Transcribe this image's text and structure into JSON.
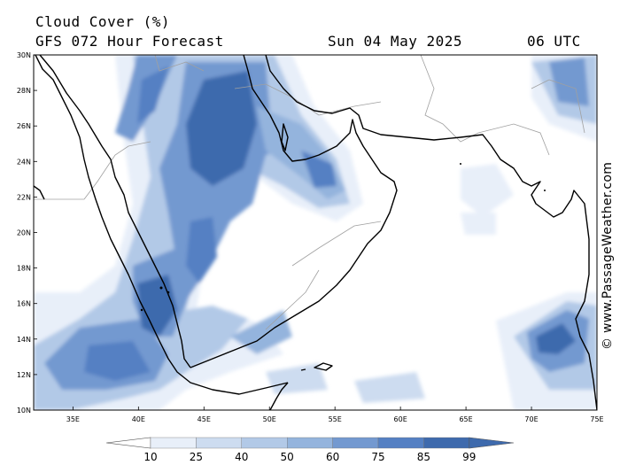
{
  "header": {
    "title": "Cloud Cover (%)",
    "model": "GFS 072 Hour Forecast",
    "date": "Sun 04 May 2025",
    "time": "06 UTC"
  },
  "credit": "© www.PassageWeather.com",
  "map": {
    "lat_range": [
      10,
      30
    ],
    "lon_range": [
      32,
      75
    ],
    "lat_labels": [
      "30N",
      "28N",
      "26N",
      "24N",
      "22N",
      "20N",
      "18N",
      "16N",
      "14N",
      "12N",
      "10N"
    ],
    "lon_labels": [
      "35E",
      "40E",
      "45E",
      "50E",
      "55E",
      "60E",
      "65E",
      "70E",
      "75E"
    ],
    "colors": {
      "coast": "#000000",
      "border": "#a0a0a0",
      "c25": "#e8eff9",
      "c40": "#cddcf0",
      "c50": "#b2c9e7",
      "c60": "#94b4dd",
      "c75": "#7399d0",
      "c85": "#5480c3",
      "c99": "#3e6aad"
    }
  },
  "colorbar": {
    "labels": [
      "10",
      "25",
      "40",
      "50",
      "60",
      "75",
      "85",
      "99"
    ],
    "colors": [
      "#ffffff",
      "#e8eff9",
      "#cddcf0",
      "#b2c9e7",
      "#94b4dd",
      "#7399d0",
      "#5480c3",
      "#3e6aad"
    ]
  }
}
